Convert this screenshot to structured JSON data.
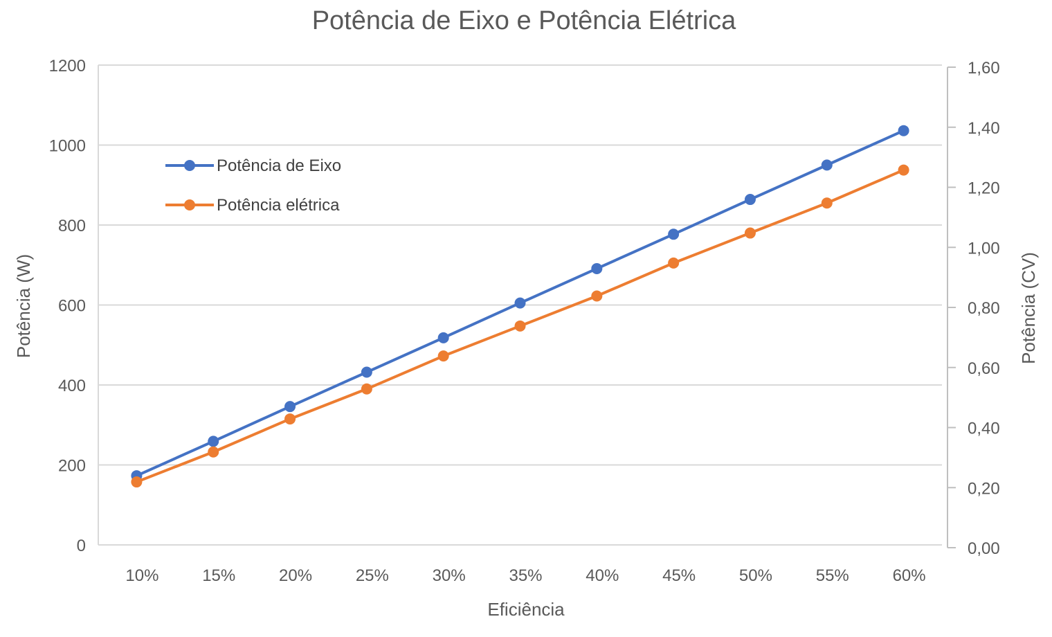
{
  "chart_data": {
    "type": "line",
    "title": "Potência de Eixo e Potência Elétrica",
    "xlabel": "Eficiência",
    "ylabel": "Potência (W)",
    "y2label": "Potência (CV)",
    "categories": [
      "10%",
      "15%",
      "20%",
      "25%",
      "30%",
      "35%",
      "40%",
      "45%",
      "50%",
      "55%",
      "60%"
    ],
    "ylim": [
      0,
      1200
    ],
    "yticks": [
      "0",
      "200",
      "400",
      "600",
      "800",
      "1000",
      "1200"
    ],
    "y2lim": [
      0,
      1.6
    ],
    "y2ticks": [
      "0,00",
      "0,20",
      "0,40",
      "0,60",
      "0,80",
      "1,00",
      "1,20",
      "1,40",
      "1,60"
    ],
    "grid": true,
    "legend_position": "upper-left inside",
    "series": [
      {
        "name": "Potência de Eixo",
        "color": "#4472C4",
        "axis": "left",
        "values": [
          173,
          259,
          346,
          432,
          518,
          605,
          691,
          777,
          864,
          950,
          1036
        ]
      },
      {
        "name": "Potência elétrica",
        "color": "#ED7D31",
        "axis": "right",
        "values": [
          0.21,
          0.31,
          0.42,
          0.52,
          0.63,
          0.73,
          0.83,
          0.94,
          1.04,
          1.14,
          1.25
        ]
      }
    ]
  }
}
